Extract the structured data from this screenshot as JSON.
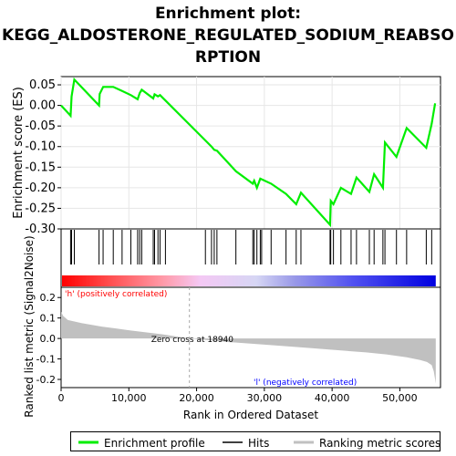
{
  "title_lines": [
    "Enrichment plot:",
    "KEGG_ALDOSTERONE_REGULATED_SODIUM_REABSO",
    "RPTION"
  ],
  "colors": {
    "enrichment_line": "#00ee00",
    "hits": "#000000",
    "metric_fill": "#c0c0c0",
    "pos_label": "#ff0000",
    "neg_label": "#0000ff"
  },
  "chart_data": [
    {
      "type": "line",
      "name": "enrichment-plot",
      "ylabel": "Enrichment score (ES)",
      "xlim": [
        0,
        56000
      ],
      "ylim": [
        -0.3,
        0.07
      ],
      "yticks": [
        0.05,
        0.0,
        -0.05,
        -0.1,
        -0.15,
        -0.2,
        -0.25,
        -0.3
      ],
      "ytick_labels": [
        "0.05",
        "0.00",
        "-0.05",
        "-0.10",
        "-0.15",
        "-0.20",
        "-0.25",
        "-0.30"
      ],
      "grid": true,
      "x": [
        0,
        1400,
        1550,
        1950,
        5600,
        5700,
        6200,
        7700,
        9000,
        10300,
        11300,
        11600,
        11900,
        13600,
        13800,
        14300,
        14600,
        15400,
        21300,
        22200,
        22600,
        23000,
        25800,
        28300,
        28500,
        28900,
        29400,
        31000,
        33200,
        34700,
        35400,
        39700,
        39800,
        40200,
        41300,
        42800,
        43600,
        45500,
        46200,
        47500,
        47800,
        49500,
        51000,
        53900,
        54700,
        55200
      ],
      "y": [
        0.0,
        -0.025,
        0.022,
        0.063,
        0.0,
        0.028,
        0.045,
        0.045,
        0.035,
        0.025,
        0.015,
        0.03,
        0.038,
        0.017,
        0.027,
        0.022,
        0.025,
        0.012,
        -0.085,
        -0.1,
        -0.108,
        -0.11,
        -0.16,
        -0.19,
        -0.183,
        -0.2,
        -0.178,
        -0.19,
        -0.215,
        -0.24,
        -0.212,
        -0.29,
        -0.232,
        -0.24,
        -0.2,
        -0.215,
        -0.175,
        -0.21,
        -0.167,
        -0.2,
        -0.09,
        -0.125,
        -0.055,
        -0.103,
        -0.045,
        0.005
      ],
      "hits": [
        1400,
        1550,
        1950,
        5600,
        6200,
        7700,
        9000,
        10300,
        11300,
        11600,
        11900,
        13600,
        13800,
        14300,
        14600,
        15400,
        21300,
        22200,
        22600,
        23000,
        25800,
        28300,
        28500,
        28900,
        29400,
        29600,
        31000,
        33200,
        34700,
        35400,
        39700,
        39800,
        40200,
        41300,
        42800,
        43600,
        45500,
        46200,
        47500,
        47800,
        49500,
        51000,
        53900,
        54700
      ]
    },
    {
      "type": "area",
      "name": "ranked-list-metric",
      "ylabel": "Ranked list metric (Signal2Noise)",
      "xlabel": "Rank in Ordered Dataset",
      "xlim": [
        0,
        56000
      ],
      "ylim": [
        -0.24,
        0.25
      ],
      "xticks": [
        0,
        10000,
        20000,
        30000,
        40000,
        50000
      ],
      "xtick_labels": [
        "0",
        "10,000",
        "20,000",
        "30,000",
        "40,000",
        "50,000"
      ],
      "yticks": [
        0.2,
        0.1,
        0.0,
        -0.1,
        -0.2
      ],
      "ytick_labels": [
        "0.2",
        "0.1",
        "0.0",
        "-0.1",
        "-0.2"
      ],
      "x": [
        0,
        300,
        1000,
        3000,
        6000,
        10000,
        15000,
        18940,
        25000,
        30000,
        35000,
        40000,
        45000,
        48000,
        51000,
        53000,
        54000,
        54700,
        55000,
        55200,
        55300
      ],
      "y": [
        0.13,
        0.11,
        0.09,
        0.075,
        0.058,
        0.04,
        0.02,
        0.0,
        -0.018,
        -0.03,
        -0.042,
        -0.055,
        -0.068,
        -0.078,
        -0.092,
        -0.105,
        -0.115,
        -0.13,
        -0.16,
        -0.2,
        -0.22
      ],
      "zero_cross_label": "Zero cross at 18940",
      "pos_label": "'h' (positively correlated)",
      "neg_label": "'l' (negatively correlated)"
    }
  ],
  "legend": [
    {
      "label": "Enrichment profile"
    },
    {
      "label": "Hits"
    },
    {
      "label": "Ranking metric scores"
    }
  ]
}
